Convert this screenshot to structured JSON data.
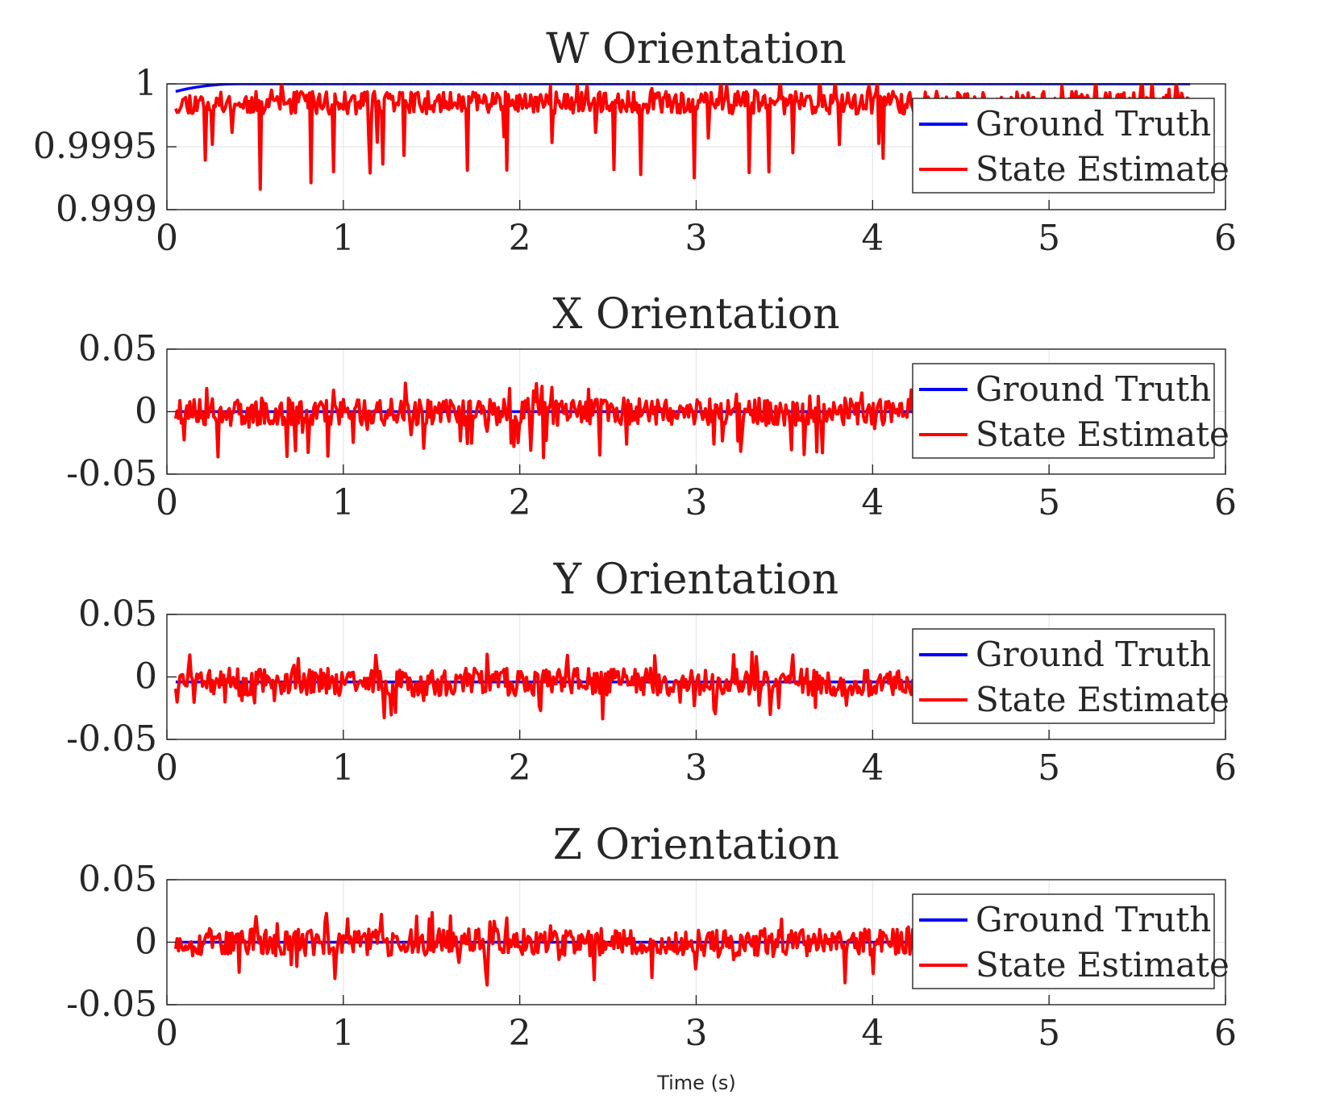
{
  "figure": {
    "xlabel": "Time (s)"
  },
  "chart_data": [
    {
      "type": "line",
      "title": "W Orientation",
      "xlabel": "",
      "ylabel": "",
      "xlim": [
        0,
        6
      ],
      "ylim": [
        0.999,
        1.0
      ],
      "xticks": [
        0,
        1,
        2,
        3,
        4,
        5,
        6
      ],
      "xtick_labels": [
        "0",
        "1",
        "2",
        "3",
        "4",
        "5",
        "6"
      ],
      "yticks": [
        0.999,
        0.9995,
        1.0
      ],
      "ytick_labels": [
        "0.999",
        "0.9995",
        "1"
      ],
      "grid": true,
      "legend_position": "top-right",
      "series": [
        {
          "name": "Ground Truth",
          "color": "#0000ff",
          "kind": "smooth",
          "x_start": 0.05,
          "x_end": 5.8,
          "level": 1.0,
          "start": 0.99994,
          "rise": 0.35
        },
        {
          "name": "State Estimate",
          "color": "#ff0000",
          "kind": "noise",
          "x_start": 0.05,
          "x_end": 5.8,
          "level": 0.99985,
          "amp": 9e-05,
          "spike_min": 0.99916,
          "seed": 11
        }
      ]
    },
    {
      "type": "line",
      "title": "X Orientation",
      "xlabel": "",
      "ylabel": "",
      "xlim": [
        0,
        6
      ],
      "ylim": [
        -0.05,
        0.05
      ],
      "xticks": [
        0,
        1,
        2,
        3,
        4,
        5,
        6
      ],
      "xtick_labels": [
        "0",
        "1",
        "2",
        "3",
        "4",
        "5",
        "6"
      ],
      "yticks": [
        -0.05,
        0,
        0.05
      ],
      "ytick_labels": [
        "-0.05",
        "0",
        "0.05"
      ],
      "grid": true,
      "legend_position": "top-right",
      "series": [
        {
          "name": "Ground Truth",
          "color": "#0000ff",
          "kind": "flat",
          "x_start": 0.05,
          "x_end": 5.8,
          "level": 0.0
        },
        {
          "name": "State Estimate",
          "color": "#ff0000",
          "kind": "noise",
          "x_start": 0.05,
          "x_end": 5.8,
          "level": 0.0,
          "amp": 0.011,
          "spike_min": -0.038,
          "seed": 23
        }
      ]
    },
    {
      "type": "line",
      "title": "Y Orientation",
      "xlabel": "",
      "ylabel": "",
      "xlim": [
        0,
        6
      ],
      "ylim": [
        -0.05,
        0.05
      ],
      "xticks": [
        0,
        1,
        2,
        3,
        4,
        5,
        6
      ],
      "xtick_labels": [
        "0",
        "1",
        "2",
        "3",
        "4",
        "5",
        "6"
      ],
      "yticks": [
        -0.05,
        0,
        0.05
      ],
      "ytick_labels": [
        "-0.05",
        "0",
        "0.05"
      ],
      "grid": true,
      "legend_position": "top-right",
      "series": [
        {
          "name": "Ground Truth",
          "color": "#0000ff",
          "kind": "flat",
          "x_start": 0.05,
          "x_end": 5.8,
          "level": -0.004
        },
        {
          "name": "State Estimate",
          "color": "#ff0000",
          "kind": "noise",
          "x_start": 0.05,
          "x_end": 5.8,
          "level": -0.004,
          "amp": 0.011,
          "spike_min": -0.036,
          "seed": 37
        }
      ]
    },
    {
      "type": "line",
      "title": "Z Orientation",
      "xlabel": "",
      "ylabel": "",
      "xlim": [
        0,
        6
      ],
      "ylim": [
        -0.05,
        0.05
      ],
      "xticks": [
        0,
        1,
        2,
        3,
        4,
        5,
        6
      ],
      "xtick_labels": [
        "0",
        "1",
        "2",
        "3",
        "4",
        "5",
        "6"
      ],
      "yticks": [
        -0.05,
        0,
        0.05
      ],
      "ytick_labels": [
        "-0.05",
        "0",
        "0.05"
      ],
      "grid": true,
      "legend_position": "top-right",
      "series": [
        {
          "name": "Ground Truth",
          "color": "#0000ff",
          "kind": "flat",
          "x_start": 0.05,
          "x_end": 5.8,
          "level": 0.0
        },
        {
          "name": "State Estimate",
          "color": "#ff0000",
          "kind": "noise",
          "x_start": 0.05,
          "x_end": 5.8,
          "level": 0.0,
          "amp": 0.011,
          "spike_min": -0.035,
          "seed": 53
        }
      ]
    }
  ]
}
